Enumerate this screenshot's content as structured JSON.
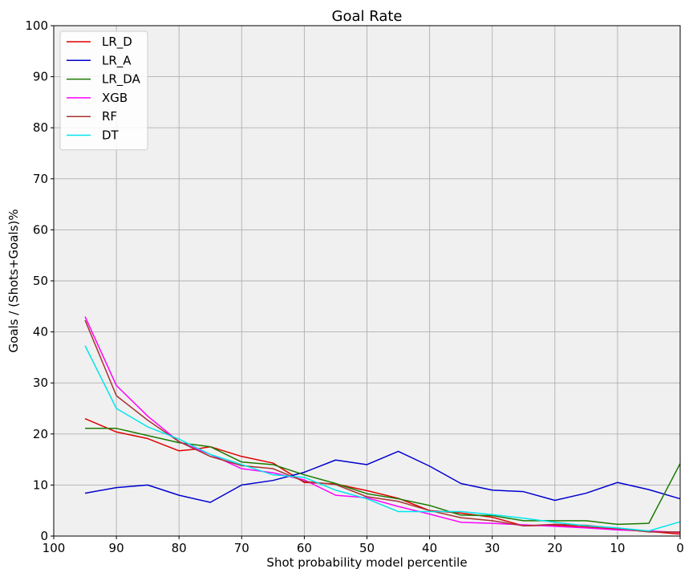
{
  "chart_data": {
    "type": "line",
    "title": "Goal Rate",
    "xlabel": "Shot probability model percentile",
    "ylabel": "Goals / (Shots+Goals)%",
    "xlim": [
      100,
      0
    ],
    "ylim": [
      0,
      100
    ],
    "xticks": [
      100,
      90,
      80,
      70,
      60,
      50,
      40,
      30,
      20,
      10,
      0
    ],
    "yticks": [
      0,
      10,
      20,
      30,
      40,
      50,
      60,
      70,
      80,
      90,
      100
    ],
    "grid": true,
    "legend_position": "top-left",
    "x": [
      95,
      90,
      85,
      80,
      77.5,
      75,
      70,
      65,
      60,
      55,
      50,
      45,
      40,
      35,
      30,
      25,
      20,
      15,
      10,
      5,
      0
    ],
    "series": [
      {
        "name": "LR_D",
        "color": "#e00000",
        "x": [
          95,
          90,
          85,
          80,
          77.5,
          75,
          70,
          65,
          60,
          55,
          50,
          45,
          40,
          35,
          30,
          25,
          20,
          15,
          10,
          5,
          0
        ],
        "values": [
          23.0,
          20.4,
          19.1,
          16.7,
          17.0,
          17.5,
          15.6,
          14.3,
          10.5,
          10.2,
          8.9,
          7.4,
          5.0,
          4.5,
          3.7,
          2.0,
          2.1,
          1.8,
          1.3,
          0.9,
          0.4
        ]
      },
      {
        "name": "LR_A",
        "color": "#0000d0",
        "x": [
          95,
          90,
          85,
          80,
          75,
          70,
          65,
          60,
          55,
          50,
          45,
          40,
          35,
          30,
          25,
          20,
          15,
          10,
          5,
          0
        ],
        "values": [
          8.4,
          9.5,
          10.0,
          8.0,
          6.6,
          10.0,
          10.9,
          12.5,
          14.9,
          14.0,
          16.6,
          13.7,
          10.3,
          9.0,
          8.7,
          7.0,
          8.4,
          10.5,
          9.1,
          7.3
        ]
      },
      {
        "name": "LR_DA",
        "color": "#1a7a00",
        "x": [
          95,
          90,
          85,
          80,
          75,
          70,
          65,
          60,
          55,
          50,
          45,
          40,
          35,
          30,
          25,
          20,
          15,
          10,
          5,
          0
        ],
        "values": [
          21.1,
          21.1,
          19.7,
          18.3,
          17.5,
          14.5,
          14.0,
          12.0,
          10.3,
          8.3,
          7.3,
          6.0,
          4.1,
          4.0,
          3.0,
          3.0,
          3.0,
          2.3,
          2.5,
          14.2
        ]
      },
      {
        "name": "XGB",
        "color": "#ff00ff",
        "x": [
          95,
          90,
          85,
          80,
          75,
          70,
          65,
          60,
          55,
          50,
          45,
          40,
          35,
          30,
          25,
          20,
          15,
          10,
          5,
          0
        ],
        "values": [
          43.0,
          29.5,
          23.5,
          18.5,
          16.0,
          13.2,
          12.4,
          11.0,
          8.0,
          7.5,
          5.8,
          4.3,
          2.7,
          2.5,
          2.2,
          1.9,
          1.6,
          1.2,
          1.0,
          0.7
        ]
      },
      {
        "name": "RF",
        "color": "#a83232",
        "x": [
          95,
          90,
          85,
          80,
          75,
          70,
          65,
          60,
          55,
          50,
          45,
          40,
          35,
          30,
          25,
          20,
          15,
          10,
          5,
          0
        ],
        "values": [
          42.3,
          27.5,
          22.7,
          18.5,
          15.6,
          13.8,
          13.2,
          10.7,
          10.1,
          7.7,
          6.8,
          5.0,
          3.6,
          3.0,
          2.0,
          2.3,
          2.1,
          1.5,
          0.8,
          0.8
        ]
      },
      {
        "name": "DT",
        "color": "#00e5ee",
        "x": [
          95,
          90,
          85,
          80,
          75,
          70,
          65,
          60,
          55,
          50,
          45,
          40,
          35,
          30,
          25,
          20,
          15,
          10,
          5,
          0
        ],
        "values": [
          37.3,
          25.0,
          21.4,
          19.0,
          16.0,
          14.0,
          12.0,
          11.5,
          9.0,
          7.3,
          4.8,
          4.8,
          4.8,
          4.2,
          3.5,
          2.7,
          2.0,
          1.6,
          1.0,
          2.8
        ]
      }
    ]
  }
}
